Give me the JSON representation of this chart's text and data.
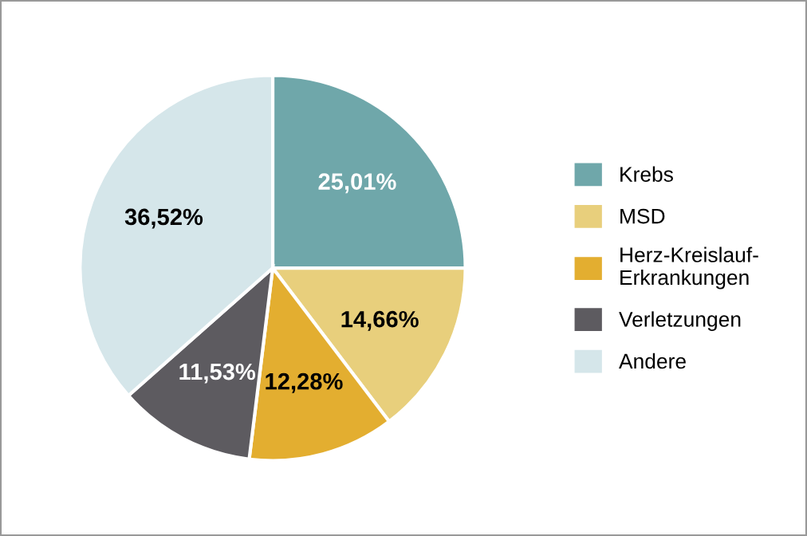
{
  "chart_data": {
    "type": "pie",
    "categories": [
      "Krebs",
      "MSD",
      "Herz-Kreislauf-\nErkrankungen",
      "Verletzungen",
      "Andere"
    ],
    "values": [
      25.01,
      14.66,
      12.28,
      11.53,
      36.52
    ],
    "value_labels": [
      "25,01%",
      "14,66%",
      "12,28%",
      "11,53%",
      "36,52%"
    ],
    "colors": [
      "#6fa7aa",
      "#e8cf7c",
      "#e3ae30",
      "#5d5b60",
      "#d5e6ea"
    ],
    "legend": "right"
  }
}
